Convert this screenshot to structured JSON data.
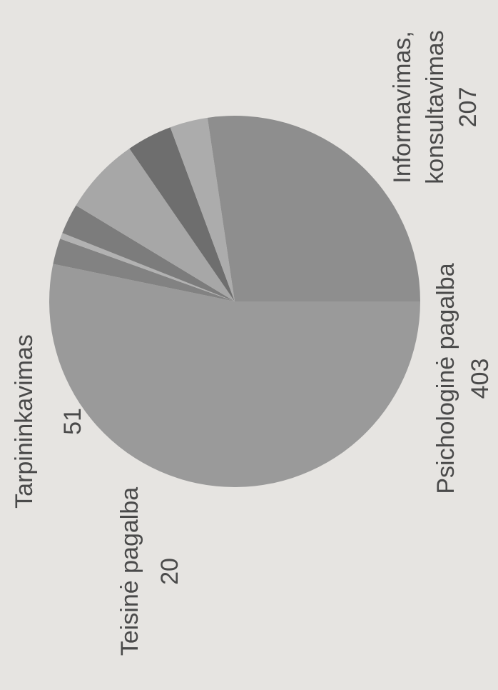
{
  "chart_data": {
    "type": "pie",
    "title": "",
    "orientation": "rotated 90° counter-clockwise",
    "slices": [
      {
        "label": "Psichologinė pagalba",
        "value": 403,
        "color": "#9a9a9a"
      },
      {
        "label": "",
        "value": 17,
        "color": "#828282"
      },
      {
        "label": "",
        "value": 4,
        "color": "#b2b2b2"
      },
      {
        "label": "Teisinė pagalba",
        "value": 20,
        "color": "#7c7c7c"
      },
      {
        "label": "Tarpininkavimas",
        "value": 51,
        "color": "#a7a7a7"
      },
      {
        "label": "",
        "value": 30,
        "color": "#6e6e6e"
      },
      {
        "label": "",
        "value": 25,
        "color": "#acacac"
      },
      {
        "label": "Informavimas, konsultavimas",
        "value": 207,
        "color": "#8e8e8e"
      }
    ],
    "annotations": [
      {
        "id": "informavimas",
        "lines": [
          "Informavimas,",
          "konsultavimas",
          "207"
        ]
      },
      {
        "id": "tarpininkavimas",
        "lines": [
          "Tarpininkavimas",
          "51"
        ]
      },
      {
        "id": "teisine",
        "lines": [
          "Teisinė pagalba",
          "20"
        ]
      },
      {
        "id": "psichologine",
        "lines": [
          "Psichologinė pagalba",
          "403"
        ]
      }
    ]
  }
}
